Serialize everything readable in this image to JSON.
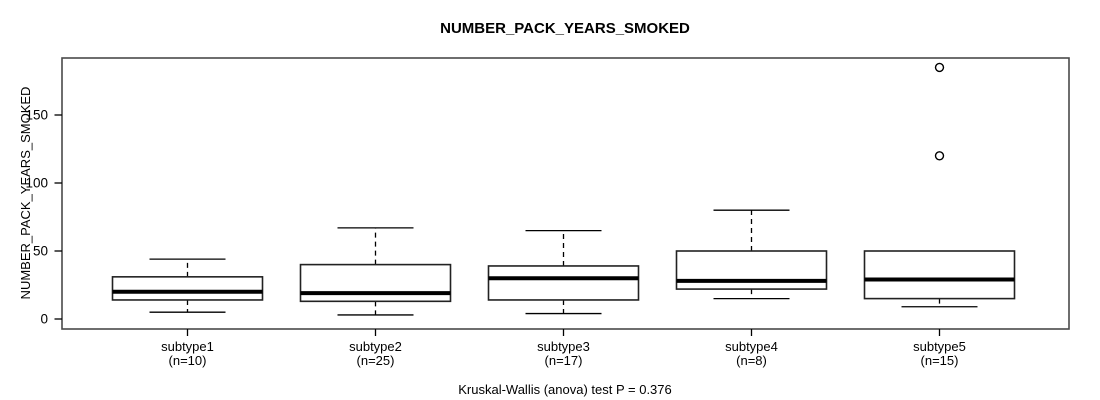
{
  "chart_data": {
    "type": "boxplot",
    "title": "NUMBER_PACK_YEARS_SMOKED",
    "xlabel": "",
    "ylabel": "NUMBER_PACK_YEARS_SMOKED",
    "annotation": "Kruskal-Wallis (anova) test P = 0.376",
    "categories": [
      "subtype1",
      "subtype2",
      "subtype3",
      "subtype4",
      "subtype5"
    ],
    "category_sublabels": [
      "(n=10)",
      "(n=25)",
      "(n=17)",
      "(n=8)",
      "(n=15)"
    ],
    "sample_sizes": [
      10,
      25,
      17,
      8,
      15
    ],
    "series": [
      {
        "name": "subtype1",
        "n": 10,
        "whisker_low": 5,
        "q1": 14,
        "median": 20,
        "q3": 31,
        "whisker_high": 44,
        "outliers": []
      },
      {
        "name": "subtype2",
        "n": 25,
        "whisker_low": 3,
        "q1": 13,
        "median": 19,
        "q3": 40,
        "whisker_high": 67,
        "outliers": []
      },
      {
        "name": "subtype3",
        "n": 17,
        "whisker_low": 4,
        "q1": 14,
        "median": 30,
        "q3": 39,
        "whisker_high": 65,
        "outliers": []
      },
      {
        "name": "subtype4",
        "n": 8,
        "whisker_low": 15,
        "q1": 22,
        "median": 28,
        "q3": 50,
        "whisker_high": 80,
        "outliers": []
      },
      {
        "name": "subtype5",
        "n": 15,
        "whisker_low": 9,
        "q1": 15,
        "median": 29,
        "q3": 50,
        "whisker_high": 50,
        "outliers": [
          120,
          185
        ]
      }
    ],
    "y_ticks": [
      0,
      50,
      100,
      150
    ],
    "ylim": [
      -7.5,
      192
    ],
    "grid": false,
    "legend": false,
    "colors": {
      "box_fill": "#ffffff",
      "line": "#000000",
      "plot_border": "#4a4a4a",
      "background": "#ffffff"
    }
  }
}
